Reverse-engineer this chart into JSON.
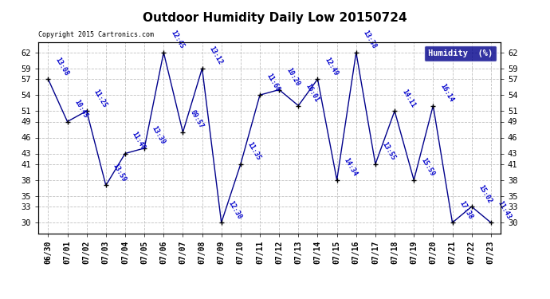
{
  "title": "Outdoor Humidity Daily Low 20150724",
  "copyright": "Copyright 2015 Cartronics.com",
  "legend_label": "Humidity  (%)",
  "x_labels": [
    "06/30",
    "07/01",
    "07/02",
    "07/03",
    "07/04",
    "07/05",
    "07/06",
    "07/07",
    "07/08",
    "07/09",
    "07/10",
    "07/11",
    "07/12",
    "07/13",
    "07/14",
    "07/15",
    "07/16",
    "07/17",
    "07/18",
    "07/19",
    "07/20",
    "07/21",
    "07/22",
    "07/23"
  ],
  "y_values": [
    57,
    49,
    51,
    37,
    43,
    44,
    62,
    47,
    59,
    30,
    41,
    54,
    55,
    52,
    57,
    38,
    62,
    41,
    51,
    38,
    52,
    30,
    33,
    30
  ],
  "point_labels": [
    "13:08",
    "10:45",
    "11:25",
    "13:59",
    "11:40",
    "13:39",
    "12:45",
    "09:57",
    "13:12",
    "12:30",
    "11:35",
    "11:60",
    "10:20",
    "16:01",
    "12:49",
    "14:34",
    "13:38",
    "13:55",
    "14:11",
    "15:59",
    "16:14",
    "17:38",
    "15:02",
    "11:43"
  ],
  "line_color": "#00008B",
  "marker_color": "#000000",
  "label_color": "#0000CD",
  "title_color": "#000000",
  "bg_color": "#ffffff",
  "plot_bg_color": "#ffffff",
  "grid_color": "#b0b0b0",
  "ylim_min": 28,
  "ylim_max": 64,
  "yticks": [
    30,
    33,
    35,
    38,
    41,
    43,
    46,
    49,
    51,
    54,
    57,
    59,
    62
  ],
  "legend_bg": "#00008B",
  "legend_fg": "#ffffff"
}
